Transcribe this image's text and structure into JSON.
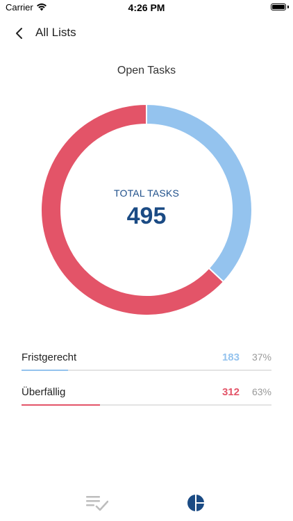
{
  "status_bar": {
    "carrier": "Carrier",
    "time": "4:26 PM"
  },
  "nav": {
    "back_label": "All Lists",
    "back_icon": "chevron-left-icon"
  },
  "chart": {
    "title": "Open Tasks",
    "center_label": "TOTAL TASKS",
    "center_value": "495"
  },
  "chart_data": {
    "type": "pie",
    "title": "Open Tasks",
    "donut": true,
    "start_angle_deg": 0,
    "total": 495,
    "categories": [
      "Fristgerecht",
      "Überfällig"
    ],
    "values": [
      183,
      312
    ],
    "percentages": [
      37,
      63
    ],
    "colors": [
      "#94c3ee",
      "#e35468"
    ]
  },
  "legend": [
    {
      "name": "Fristgerecht",
      "count": "183",
      "percent": "37%",
      "fraction": 0.37,
      "color": "#94c3ee"
    },
    {
      "name": "Überfällig",
      "count": "312",
      "percent": "63%",
      "fraction": 0.63,
      "color": "#e35468"
    }
  ],
  "tab_bar": {
    "tabs": [
      {
        "icon": "task-list-check-icon",
        "active": false,
        "color": "#bdbdbd"
      },
      {
        "icon": "pie-chart-icon",
        "active": true,
        "color": "#1b4b84"
      }
    ]
  },
  "colors": {
    "primary": "#1b4b84",
    "on_time": "#94c3ee",
    "overdue": "#e35468",
    "muted": "#999999"
  }
}
